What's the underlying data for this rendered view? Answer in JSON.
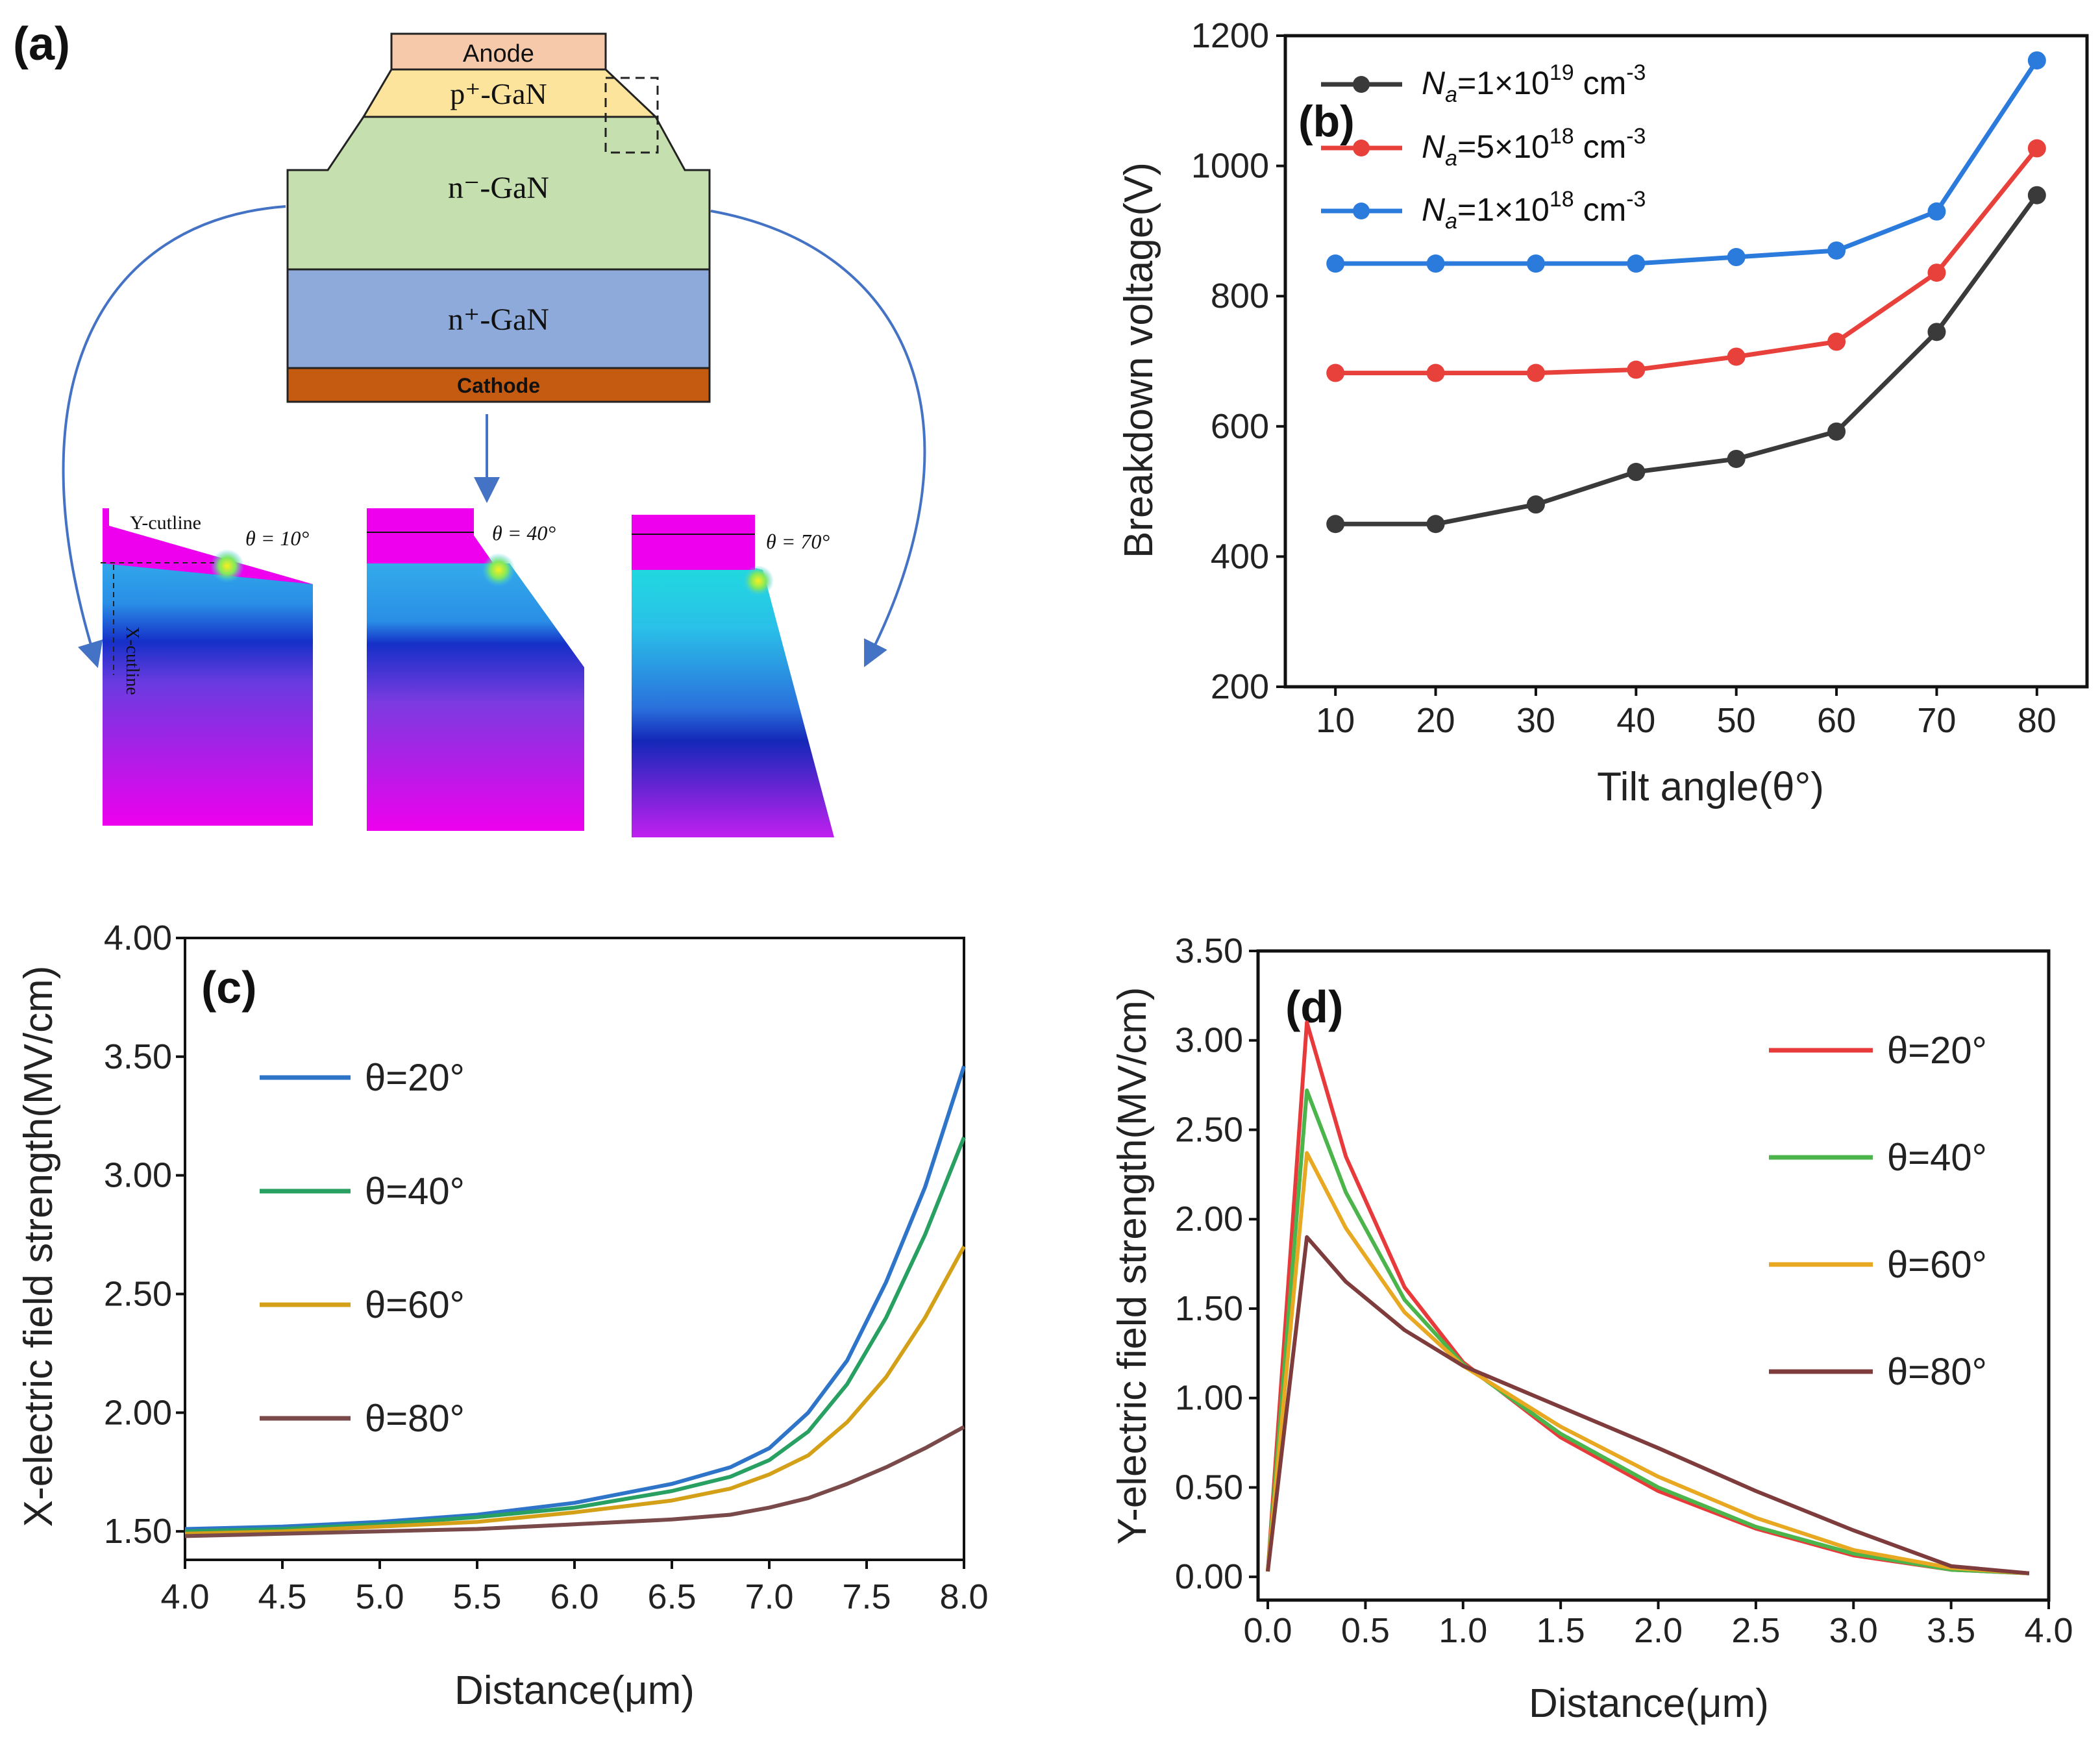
{
  "panel_a": {
    "label": "(a)",
    "layers": {
      "anode": "Anode",
      "p_plus": "p⁺-GaN",
      "n_minus": "n⁻-GaN",
      "n_plus": "n⁺-GaN",
      "cathode": "Cathode"
    },
    "sim_labels": {
      "y_cutline": "Y-cutline",
      "x_cutline": "X-cutline",
      "theta10": "θ = 10°",
      "theta40": "θ = 40°",
      "theta70": "θ = 70°"
    },
    "colors": {
      "anode": "#f6c9aa",
      "p_plus": "#fde49c",
      "n_minus": "#c5dfae",
      "n_plus": "#8eaadb",
      "cathode": "#c55a11",
      "arrow": "#4472c4",
      "sim_top": "#ee00ee"
    }
  },
  "chart_data": [
    {
      "id": "b",
      "label": "(b)",
      "type": "line",
      "xlabel": "Tilt angle(θ°)",
      "ylabel": "Breakdown voltage(V)",
      "x": [
        10,
        20,
        30,
        40,
        50,
        60,
        70,
        80
      ],
      "xlim": [
        5,
        85
      ],
      "ylim": [
        200,
        1200
      ],
      "xticks": [
        "10",
        "20",
        "30",
        "40",
        "50",
        "60",
        "70",
        "80"
      ],
      "yticks": [
        "200",
        "400",
        "600",
        "800",
        "1000",
        "1200"
      ],
      "legend": [
        "Na=1×10^19 cm^-3",
        "Na=5×10^18 cm^-3",
        "Na=1×10^18 cm^-3"
      ],
      "series": [
        {
          "name": "Na=1×10^19 cm^-3",
          "color": "#3a3a3a",
          "values": [
            450,
            450,
            480,
            530,
            550,
            592,
            745,
            955
          ]
        },
        {
          "name": "Na=5×10^18 cm^-3",
          "color": "#e8413c",
          "values": [
            682,
            682,
            682,
            687,
            707,
            730,
            836,
            1027
          ]
        },
        {
          "name": "Na=1×10^18 cm^-3",
          "color": "#2b7bdc",
          "values": [
            850,
            850,
            850,
            850,
            860,
            870,
            930,
            1162
          ]
        }
      ]
    },
    {
      "id": "c",
      "label": "(c)",
      "type": "line",
      "xlabel": "Distance(μm)",
      "ylabel": "X-electric field strength(MV/cm)",
      "xlim": [
        4.0,
        8.0
      ],
      "ylim": [
        1.38,
        4.0
      ],
      "xticks": [
        "4.0",
        "4.5",
        "5.0",
        "5.5",
        "6.0",
        "6.5",
        "7.0",
        "7.5",
        "8.0"
      ],
      "yticks": [
        "1.50",
        "2.00",
        "2.50",
        "3.00",
        "3.50",
        "4.00"
      ],
      "x": [
        4.0,
        4.5,
        5.0,
        5.5,
        6.0,
        6.5,
        6.8,
        7.0,
        7.2,
        7.4,
        7.6,
        7.8,
        8.0
      ],
      "series": [
        {
          "name": "θ=20°",
          "color": "#2e74c8",
          "values": [
            1.51,
            1.52,
            1.54,
            1.57,
            1.62,
            1.7,
            1.77,
            1.85,
            2.0,
            2.22,
            2.55,
            2.95,
            3.46
          ]
        },
        {
          "name": "θ=40°",
          "color": "#28a062",
          "values": [
            1.5,
            1.51,
            1.53,
            1.56,
            1.6,
            1.67,
            1.73,
            1.8,
            1.92,
            2.12,
            2.4,
            2.75,
            3.16
          ]
        },
        {
          "name": "θ=60°",
          "color": "#d4a017",
          "values": [
            1.49,
            1.5,
            1.52,
            1.54,
            1.58,
            1.63,
            1.68,
            1.74,
            1.82,
            1.96,
            2.15,
            2.4,
            2.7
          ]
        },
        {
          "name": "θ=80°",
          "color": "#7a4a4a",
          "values": [
            1.48,
            1.49,
            1.5,
            1.51,
            1.53,
            1.55,
            1.57,
            1.6,
            1.64,
            1.7,
            1.77,
            1.85,
            1.94
          ]
        }
      ]
    },
    {
      "id": "d",
      "label": "(d)",
      "type": "line",
      "xlabel": "Distance(μm)",
      "ylabel": "Y-electric field strength(MV/cm)",
      "xlim": [
        -0.05,
        4.0
      ],
      "ylim": [
        -0.13,
        3.5
      ],
      "xticks": [
        "0.0",
        "0.5",
        "1.0",
        "1.5",
        "2.0",
        "2.5",
        "3.0",
        "3.5",
        "4.0"
      ],
      "yticks": [
        "0.00",
        "0.50",
        "1.00",
        "1.50",
        "2.00",
        "2.50",
        "3.00",
        "3.50"
      ],
      "x": [
        0.0,
        0.2,
        0.4,
        0.7,
        1.0,
        1.5,
        2.0,
        2.5,
        3.0,
        3.5,
        3.9
      ],
      "series": [
        {
          "name": "θ=20°",
          "color": "#e83a3a",
          "values": [
            0.03,
            3.1,
            2.35,
            1.62,
            1.2,
            0.78,
            0.48,
            0.27,
            0.12,
            0.04,
            0.02
          ]
        },
        {
          "name": "θ=40°",
          "color": "#4bb54b",
          "values": [
            0.03,
            2.72,
            2.15,
            1.55,
            1.19,
            0.8,
            0.5,
            0.28,
            0.13,
            0.04,
            0.02
          ]
        },
        {
          "name": "θ=60°",
          "color": "#e8a821",
          "values": [
            0.03,
            2.37,
            1.95,
            1.48,
            1.18,
            0.84,
            0.56,
            0.33,
            0.15,
            0.05,
            0.02
          ]
        },
        {
          "name": "θ=80°",
          "color": "#7f3c3c",
          "values": [
            0.03,
            1.9,
            1.65,
            1.38,
            1.18,
            0.95,
            0.72,
            0.48,
            0.26,
            0.06,
            0.02
          ]
        }
      ]
    }
  ]
}
